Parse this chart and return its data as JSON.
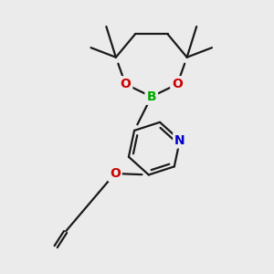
{
  "bg_color": "#ebebeb",
  "bond_color": "#1a1a1a",
  "bond_width": 1.6,
  "figsize": [
    3.0,
    3.0
  ],
  "dpi": 100,
  "atom_colors": {
    "O": "#cc0000",
    "B": "#00aa00",
    "N": "#0000cc",
    "C": "#1a1a1a"
  }
}
